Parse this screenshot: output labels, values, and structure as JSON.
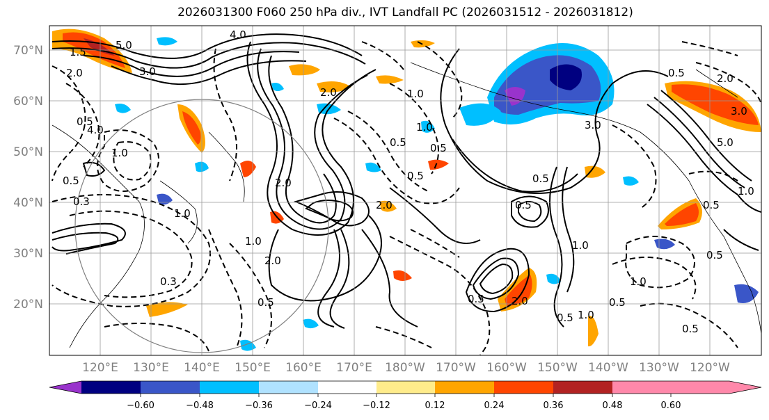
{
  "title": "2026031300 F060 250 hPa div., IVT Landfall PC (2026031512 - 2026031812)",
  "colors": {
    "background": "#ffffff",
    "grid": "#999999",
    "axis_labels": "#808080",
    "contour": "#000000",
    "colorbar_bins": [
      "#9933cc",
      "#000080",
      "#3a56c8",
      "#00bfff",
      "#b0e2ff",
      "#ffffff",
      "#ffec8b",
      "#ffa500",
      "#ff4500",
      "#b22222",
      "#ff88aa"
    ]
  },
  "map": {
    "lat_ticks": [
      "70°N",
      "60°N",
      "50°N",
      "40°N",
      "30°N",
      "20°N"
    ],
    "lon_ticks": [
      "120°E",
      "130°E",
      "140°E",
      "150°E",
      "160°E",
      "170°E",
      "180°W",
      "170°W",
      "160°W",
      "150°W",
      "140°W",
      "130°W",
      "120°W"
    ],
    "contour_labels": [
      "4.0",
      "5.0",
      "1.5",
      "3.0",
      "2.0",
      "0.5",
      "1.0",
      "4.0",
      "0.5",
      "0.3",
      "2.0",
      "2.0",
      "1.0",
      "0.5",
      "0.5",
      "1.0",
      "0.5",
      "1.0",
      "2.0",
      "0.5",
      "1.0",
      "1.0",
      "0.5",
      "0.5",
      "0.5",
      "2.0",
      "0.5",
      "5.0",
      "2.0",
      "3.0",
      "3.0",
      "1.0",
      "0.5",
      "0.3",
      "2.0",
      "1.0",
      "0.5",
      "0.5",
      "0.5",
      "1.0",
      "0.5"
    ]
  },
  "colorbar": {
    "tick_labels": [
      "−0.60",
      "−0.48",
      "−0.36",
      "−0.24",
      "−0.12",
      "0.12",
      "0.24",
      "0.36",
      "0.48",
      "0.60"
    ]
  }
}
